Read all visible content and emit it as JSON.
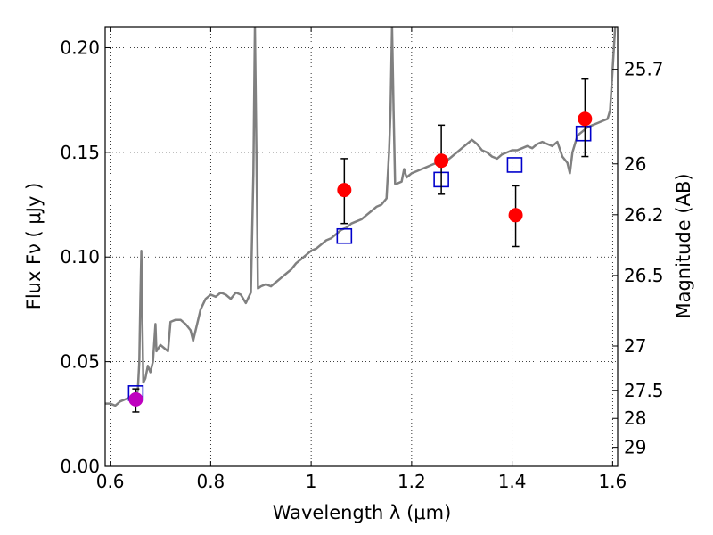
{
  "chart_data": {
    "type": "scatter",
    "title": "",
    "xlabel": "Wavelength  λ (μm)",
    "ylabel": "Flux  Fν  ( μJy )",
    "y2label": "Magnitude (AB)",
    "xlim": [
      0.59,
      1.61
    ],
    "ylim": [
      0.0,
      0.21
    ],
    "grid": true,
    "x_ticks": [
      0.6,
      0.8,
      1.0,
      1.2,
      1.4,
      1.6
    ],
    "x_tick_labels": [
      "0.6",
      "0.8",
      "1",
      "1.2",
      "1.4",
      "1.6"
    ],
    "y_ticks": [
      0.0,
      0.05,
      0.1,
      0.15,
      0.2
    ],
    "y_tick_labels": [
      "0.00",
      "0.05",
      "0.10",
      "0.15",
      "0.20"
    ],
    "y2_ticks": [
      {
        "label": "25.7",
        "flux": 0.1897
      },
      {
        "label": "26",
        "flux": 0.1445
      },
      {
        "label": "26.2",
        "flux": 0.1202
      },
      {
        "label": "26.5",
        "flux": 0.0912
      },
      {
        "label": "27",
        "flux": 0.0575
      },
      {
        "label": "27.5",
        "flux": 0.0363
      },
      {
        "label": "28",
        "flux": 0.0229
      },
      {
        "label": "29",
        "flux": 0.0091
      }
    ],
    "series": [
      {
        "kind": "line",
        "color": "#808080",
        "points": [
          [
            0.59,
            0.03
          ],
          [
            0.6,
            0.03
          ],
          [
            0.61,
            0.029
          ],
          [
            0.62,
            0.031
          ],
          [
            0.63,
            0.032
          ],
          [
            0.64,
            0.033
          ],
          [
            0.645,
            0.034
          ],
          [
            0.65,
            0.034
          ],
          [
            0.655,
            0.036
          ],
          [
            0.658,
            0.05
          ],
          [
            0.66,
            0.08
          ],
          [
            0.662,
            0.103
          ],
          [
            0.664,
            0.07
          ],
          [
            0.666,
            0.04
          ],
          [
            0.67,
            0.042
          ],
          [
            0.675,
            0.048
          ],
          [
            0.68,
            0.045
          ],
          [
            0.685,
            0.05
          ],
          [
            0.69,
            0.068
          ],
          [
            0.692,
            0.055
          ],
          [
            0.7,
            0.058
          ],
          [
            0.71,
            0.056
          ],
          [
            0.715,
            0.055
          ],
          [
            0.72,
            0.069
          ],
          [
            0.73,
            0.07
          ],
          [
            0.74,
            0.07
          ],
          [
            0.75,
            0.068
          ],
          [
            0.76,
            0.065
          ],
          [
            0.765,
            0.06
          ],
          [
            0.77,
            0.065
          ],
          [
            0.78,
            0.075
          ],
          [
            0.79,
            0.08
          ],
          [
            0.8,
            0.082
          ],
          [
            0.81,
            0.081
          ],
          [
            0.82,
            0.083
          ],
          [
            0.83,
            0.082
          ],
          [
            0.84,
            0.08
          ],
          [
            0.85,
            0.083
          ],
          [
            0.86,
            0.082
          ],
          [
            0.87,
            0.078
          ],
          [
            0.88,
            0.083
          ],
          [
            0.885,
            0.14
          ],
          [
            0.888,
            0.21
          ],
          [
            0.891,
            0.15
          ],
          [
            0.894,
            0.085
          ],
          [
            0.9,
            0.086
          ],
          [
            0.91,
            0.087
          ],
          [
            0.92,
            0.086
          ],
          [
            0.93,
            0.088
          ],
          [
            0.94,
            0.09
          ],
          [
            0.95,
            0.092
          ],
          [
            0.96,
            0.094
          ],
          [
            0.97,
            0.097
          ],
          [
            0.98,
            0.099
          ],
          [
            0.99,
            0.101
          ],
          [
            1.0,
            0.103
          ],
          [
            1.01,
            0.104
          ],
          [
            1.02,
            0.106
          ],
          [
            1.03,
            0.108
          ],
          [
            1.04,
            0.109
          ],
          [
            1.05,
            0.111
          ],
          [
            1.06,
            0.113
          ],
          [
            1.07,
            0.114
          ],
          [
            1.08,
            0.116
          ],
          [
            1.09,
            0.117
          ],
          [
            1.1,
            0.118
          ],
          [
            1.11,
            0.12
          ],
          [
            1.12,
            0.122
          ],
          [
            1.13,
            0.124
          ],
          [
            1.14,
            0.125
          ],
          [
            1.15,
            0.128
          ],
          [
            1.155,
            0.15
          ],
          [
            1.158,
            0.17
          ],
          [
            1.161,
            0.21
          ],
          [
            1.164,
            0.17
          ],
          [
            1.167,
            0.135
          ],
          [
            1.17,
            0.135
          ],
          [
            1.18,
            0.136
          ],
          [
            1.185,
            0.142
          ],
          [
            1.19,
            0.138
          ],
          [
            1.2,
            0.14
          ],
          [
            1.21,
            0.141
          ],
          [
            1.22,
            0.142
          ],
          [
            1.23,
            0.143
          ],
          [
            1.24,
            0.144
          ],
          [
            1.25,
            0.145
          ],
          [
            1.26,
            0.144
          ],
          [
            1.27,
            0.146
          ],
          [
            1.28,
            0.148
          ],
          [
            1.29,
            0.15
          ],
          [
            1.3,
            0.152
          ],
          [
            1.31,
            0.154
          ],
          [
            1.32,
            0.156
          ],
          [
            1.33,
            0.154
          ],
          [
            1.34,
            0.151
          ],
          [
            1.35,
            0.15
          ],
          [
            1.36,
            0.148
          ],
          [
            1.37,
            0.147
          ],
          [
            1.38,
            0.149
          ],
          [
            1.39,
            0.15
          ],
          [
            1.4,
            0.151
          ],
          [
            1.41,
            0.151
          ],
          [
            1.42,
            0.152
          ],
          [
            1.43,
            0.153
          ],
          [
            1.44,
            0.152
          ],
          [
            1.45,
            0.154
          ],
          [
            1.46,
            0.155
          ],
          [
            1.47,
            0.154
          ],
          [
            1.48,
            0.153
          ],
          [
            1.49,
            0.155
          ],
          [
            1.5,
            0.148
          ],
          [
            1.51,
            0.145
          ],
          [
            1.515,
            0.14
          ],
          [
            1.52,
            0.15
          ],
          [
            1.53,
            0.158
          ],
          [
            1.54,
            0.16
          ],
          [
            1.55,
            0.162
          ],
          [
            1.56,
            0.163
          ],
          [
            1.57,
            0.164
          ],
          [
            1.58,
            0.165
          ],
          [
            1.59,
            0.166
          ],
          [
            1.595,
            0.17
          ],
          [
            1.6,
            0.19
          ],
          [
            1.605,
            0.21
          ]
        ]
      },
      {
        "kind": "markers",
        "marker": "circle",
        "color": "#ff0000",
        "points": [
          {
            "x": 1.066,
            "y": 0.132,
            "err": [
              0.116,
              0.147
            ]
          },
          {
            "x": 1.259,
            "y": 0.146,
            "err": [
              0.13,
              0.163
            ]
          },
          {
            "x": 1.407,
            "y": 0.12,
            "err": [
              0.105,
              0.134
            ]
          },
          {
            "x": 1.545,
            "y": 0.166,
            "err": [
              0.148,
              0.185
            ]
          }
        ]
      },
      {
        "kind": "markers",
        "marker": "circle",
        "color": "#bf00bf",
        "points": [
          {
            "x": 0.651,
            "y": 0.032,
            "err": [
              0.026,
              0.037
            ]
          }
        ]
      },
      {
        "kind": "markers",
        "marker": "square-open",
        "color": "#0000cc",
        "points": [
          {
            "x": 0.651,
            "y": 0.035
          },
          {
            "x": 1.066,
            "y": 0.11
          },
          {
            "x": 1.259,
            "y": 0.137
          },
          {
            "x": 1.405,
            "y": 0.144
          },
          {
            "x": 1.542,
            "y": 0.159
          }
        ]
      }
    ]
  }
}
